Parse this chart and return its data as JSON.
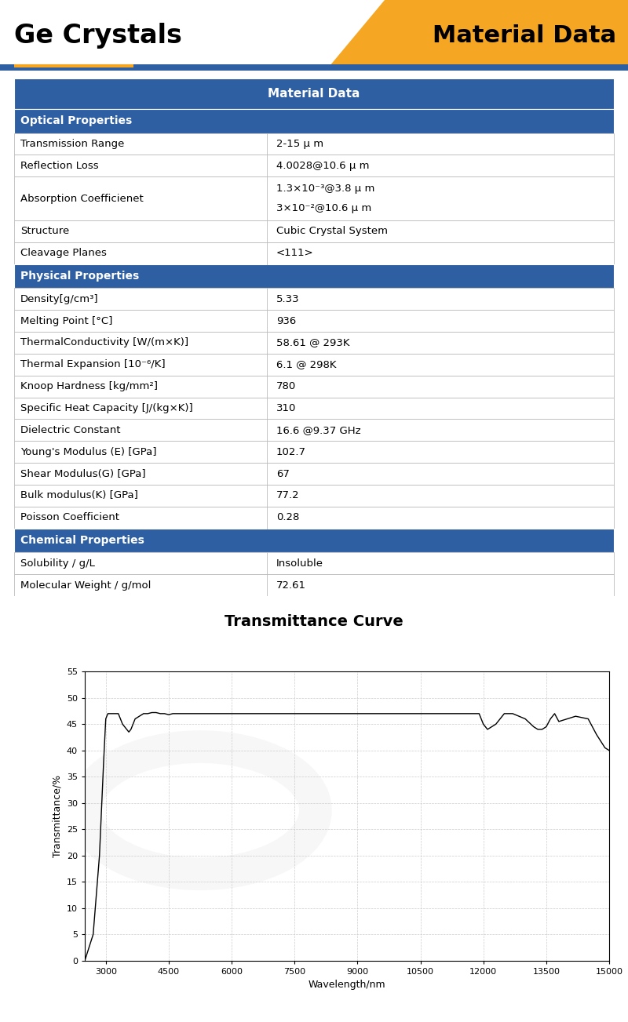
{
  "title_left": "Ge Crystals",
  "title_right": "Material Data",
  "header_color": "#2E5FA3",
  "section_color": "#2E5FA3",
  "orange_color": "#F5A623",
  "table_header": "Material Data",
  "sections": [
    {
      "name": "Optical Properties",
      "rows": [
        [
          "Transmission Range",
          "2-15 μ m"
        ],
        [
          "Reflection Loss",
          "4.0028@10.6 μ m"
        ],
        [
          "Absorption Coefficienet",
          "1.3×10⁻³@3.8 μ m\n3×10⁻²@10.6 μ m"
        ],
        [
          "Structure",
          "Cubic Crystal System"
        ],
        [
          "Cleavage Planes",
          "<111>"
        ]
      ]
    },
    {
      "name": "Physical Properties",
      "rows": [
        [
          "Density[g/cm³]",
          "5.33"
        ],
        [
          "Melting Point [°C]",
          "936"
        ],
        [
          "ThermalConductivity [W/(m×K)]",
          "58.61 @ 293K"
        ],
        [
          "Thermal Expansion [10⁻⁶/K]",
          "6.1 @ 298K"
        ],
        [
          "Knoop Hardness [kg/mm²]",
          "780"
        ],
        [
          "Specific Heat Capacity [J/(kg×K)]",
          "310"
        ],
        [
          "Dielectric Constant",
          "16.6 @9.37 GHz"
        ],
        [
          "Young's Modulus (E) [GPa]",
          "102.7"
        ],
        [
          "Shear Modulus(G) [GPa]",
          "67"
        ],
        [
          "Bulk modulus(K) [GPa]",
          "77.2"
        ],
        [
          "Poisson Coefficient",
          "0.28"
        ]
      ]
    },
    {
      "name": "Chemical Properties",
      "rows": [
        [
          "Solubility / g/L",
          "Insoluble"
        ],
        [
          "Molecular Weight / g/mol",
          "72.61"
        ]
      ]
    }
  ],
  "chart_title": "Transmittance Curve",
  "xlabel": "Wavelength/nm",
  "ylabel": "Transmittance/%",
  "xmin": 2500,
  "xmax": 15000,
  "ymin": 0,
  "ymax": 55,
  "xticks": [
    3000,
    4500,
    6000,
    7500,
    9000,
    10500,
    12000,
    13500,
    15000
  ],
  "yticks": [
    0,
    5,
    10,
    15,
    20,
    25,
    30,
    35,
    40,
    45,
    50,
    55
  ],
  "curve_x": [
    2500,
    2700,
    2850,
    2950,
    3000,
    3050,
    3100,
    3150,
    3200,
    3250,
    3300,
    3350,
    3400,
    3500,
    3550,
    3600,
    3650,
    3700,
    3800,
    3900,
    4000,
    4100,
    4200,
    4300,
    4400,
    4500,
    4600,
    4800,
    5000,
    5500,
    6000,
    6500,
    7000,
    7500,
    8000,
    8500,
    9000,
    9500,
    10000,
    10500,
    11000,
    11500,
    11700,
    11800,
    11900,
    12000,
    12100,
    12200,
    12300,
    12500,
    12700,
    13000,
    13200,
    13300,
    13400,
    13500,
    13600,
    13700,
    13800,
    14000,
    14200,
    14500,
    14700,
    14900,
    15000
  ],
  "curve_y": [
    0,
    5,
    20,
    38,
    46,
    47,
    47,
    47,
    47,
    47,
    47,
    46,
    45,
    44,
    43.5,
    44,
    45,
    46,
    46.5,
    47,
    47,
    47.2,
    47.2,
    47,
    47,
    46.8,
    47,
    47,
    47,
    47,
    47,
    47,
    47,
    47,
    47,
    47,
    47,
    47,
    47,
    47,
    47,
    47,
    47,
    47,
    47,
    45,
    44,
    44.5,
    45,
    47,
    47,
    46,
    44.5,
    44,
    44,
    44.5,
    46,
    47,
    45.5,
    46,
    46.5,
    46,
    43,
    40.5,
    40
  ]
}
